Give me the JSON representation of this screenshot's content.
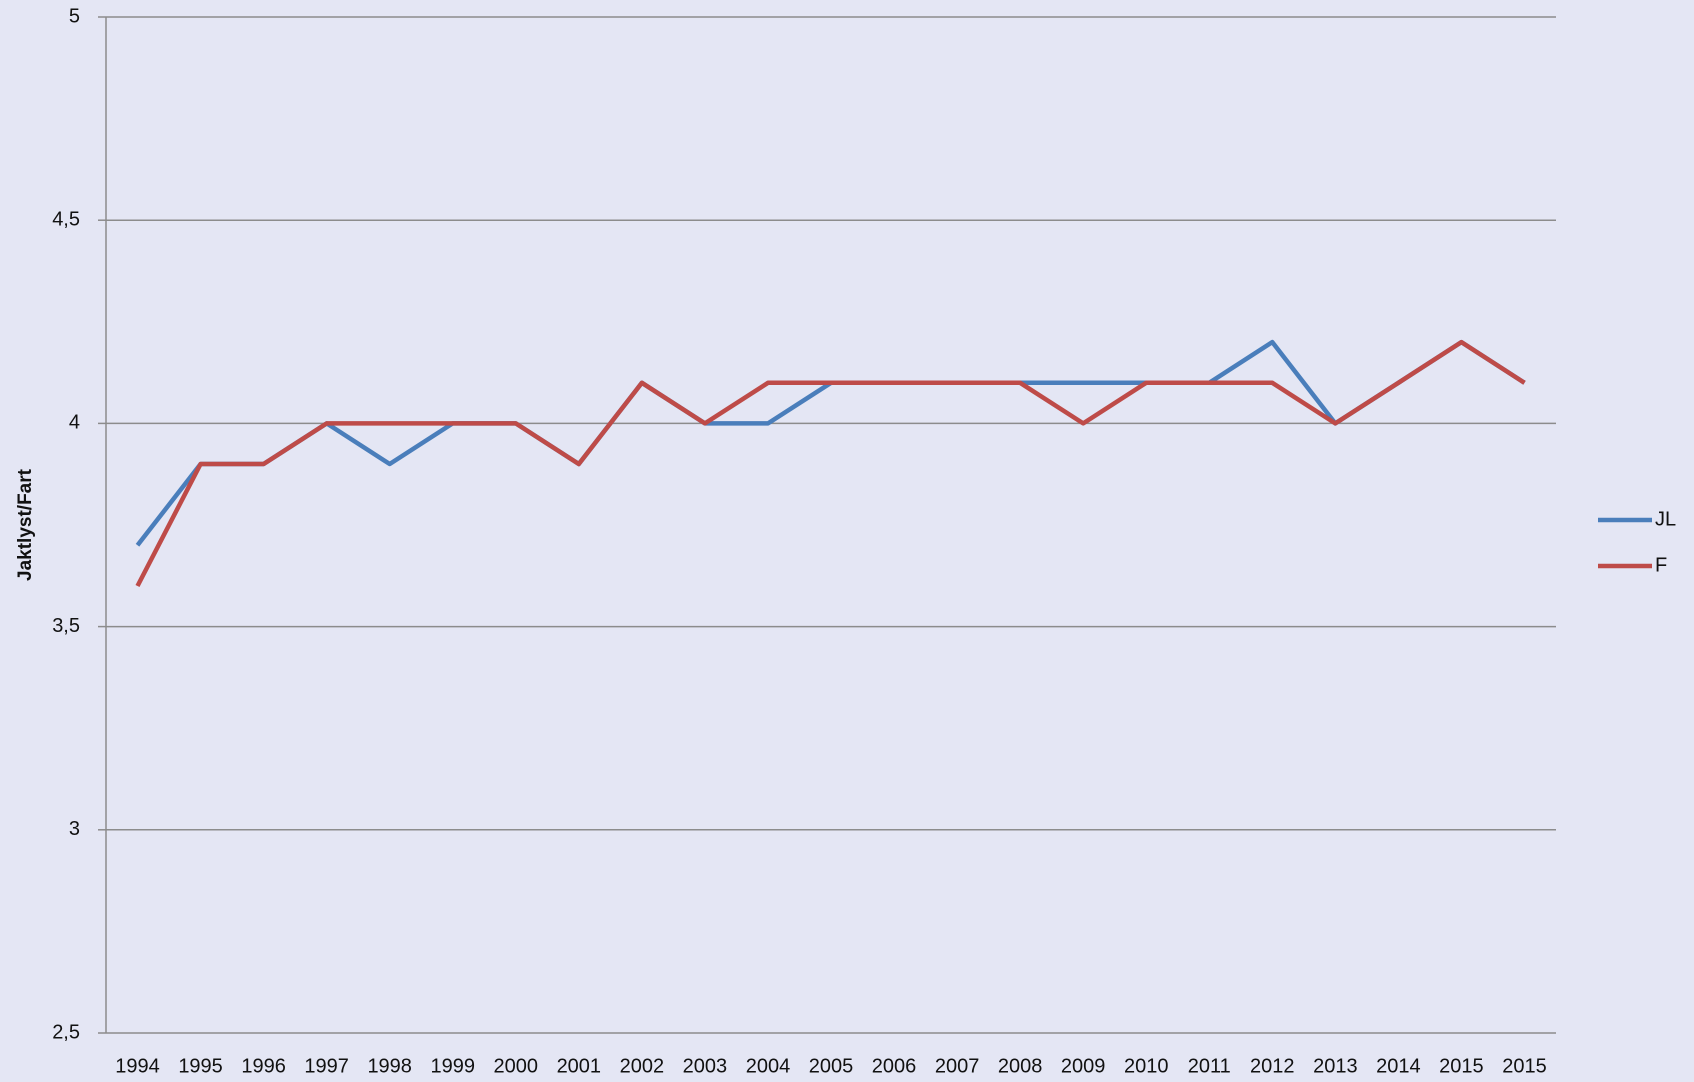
{
  "chart_data": {
    "type": "line",
    "y_label": "Jaktlyst/Fart",
    "categories": [
      "1994",
      "1995",
      "1996",
      "1997",
      "1998",
      "1999",
      "2000",
      "2001",
      "2002",
      "2003",
      "2004",
      "2005",
      "2006",
      "2007",
      "2008",
      "2009",
      "2010",
      "2011",
      "2012",
      "2013",
      "2014",
      "2015",
      "2015"
    ],
    "series": [
      {
        "name": "JL",
        "color": "#4a7ebb",
        "values": [
          3.7,
          3.9,
          3.9,
          4.0,
          3.9,
          4.0,
          4.0,
          3.9,
          4.1,
          4.0,
          4.0,
          4.1,
          4.1,
          4.1,
          4.1,
          4.1,
          4.1,
          4.1,
          4.2,
          4.0,
          4.1,
          4.2,
          4.1
        ]
      },
      {
        "name": "F",
        "color": "#be4b48",
        "values": [
          3.6,
          3.9,
          3.9,
          4.0,
          4.0,
          4.0,
          4.0,
          3.9,
          4.1,
          4.0,
          4.1,
          4.1,
          4.1,
          4.1,
          4.1,
          4.0,
          4.1,
          4.1,
          4.1,
          4.0,
          4.1,
          4.2,
          4.1
        ]
      }
    ],
    "ylim": [
      2.5,
      5
    ],
    "yticks": [
      {
        "value": 2.5,
        "label": "2,5"
      },
      3,
      {
        "value": 3.5,
        "label": "3,5"
      },
      4,
      {
        "value": 4.5,
        "label": "4,5"
      },
      5
    ],
    "grid": true,
    "legend": "right"
  }
}
